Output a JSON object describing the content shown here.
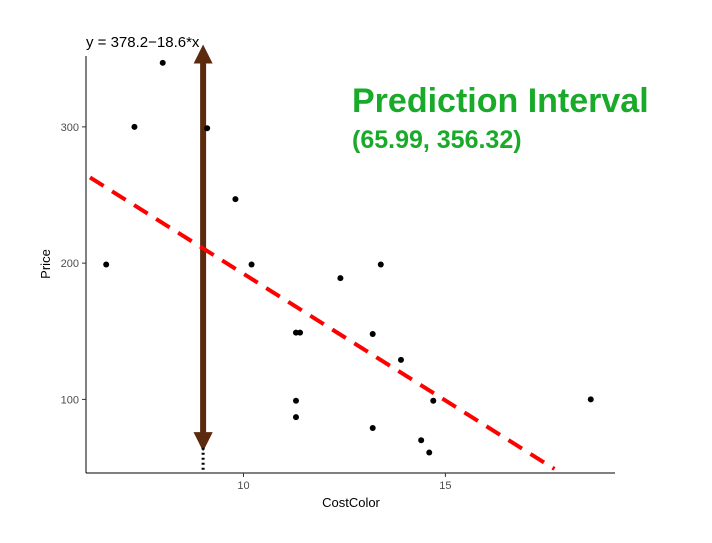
{
  "chart_data": {
    "type": "scatter",
    "equation": "y = 378.2−18.6*x",
    "xlabel": "CostColor",
    "ylabel": "Price",
    "xlim": [
      6.1,
      19.2
    ],
    "ylim": [
      46,
      352
    ],
    "xticks": [
      10,
      15
    ],
    "xtick_labels": [
      "10",
      "15"
    ],
    "yticks": [
      100,
      200,
      300
    ],
    "ytick_labels": [
      "100",
      "200",
      "300"
    ],
    "grid": false,
    "points": [
      {
        "x": 6.6,
        "y": 199
      },
      {
        "x": 7.3,
        "y": 300
      },
      {
        "x": 8.0,
        "y": 347
      },
      {
        "x": 9.1,
        "y": 299
      },
      {
        "x": 9.8,
        "y": 247
      },
      {
        "x": 10.2,
        "y": 199
      },
      {
        "x": 11.3,
        "y": 149
      },
      {
        "x": 11.4,
        "y": 149
      },
      {
        "x": 11.3,
        "y": 99
      },
      {
        "x": 11.3,
        "y": 87
      },
      {
        "x": 12.4,
        "y": 189
      },
      {
        "x": 13.2,
        "y": 148
      },
      {
        "x": 13.4,
        "y": 199
      },
      {
        "x": 13.9,
        "y": 129
      },
      {
        "x": 13.2,
        "y": 79
      },
      {
        "x": 14.4,
        "y": 70
      },
      {
        "x": 14.6,
        "y": 61
      },
      {
        "x": 14.7,
        "y": 99
      },
      {
        "x": 18.6,
        "y": 100
      }
    ],
    "regression_line": {
      "intercept": 378.2,
      "slope": -18.6,
      "x_start": 6.2,
      "x_end": 17.7,
      "color": "#ff0000",
      "style": "dashed"
    },
    "prediction_interval": {
      "x": 9.0,
      "lower": 65.99,
      "upper": 356.32,
      "arrow_color": "#5c2a0e"
    },
    "annotation": {
      "title": "Prediction Interval",
      "values": "(65.99, 356.32)",
      "color": "#1aaa2a"
    }
  }
}
